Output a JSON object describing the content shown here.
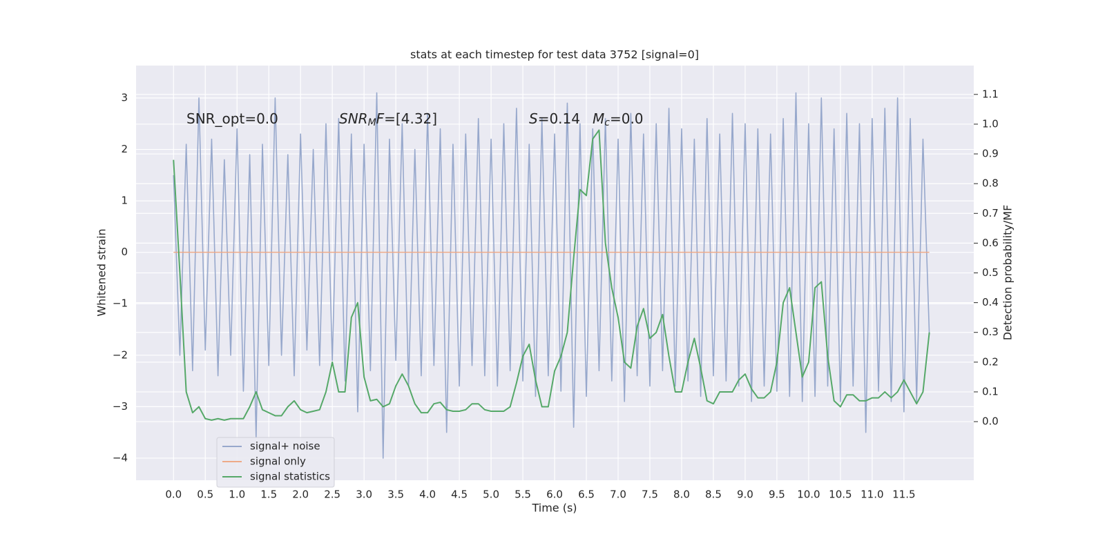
{
  "chart_data": {
    "type": "line",
    "title": "stats at each timestep for test data 3752 [signal=0]",
    "xlabel": "Time (s)",
    "ylabel": "Whitened strain",
    "y2label": "Detection probability/MF",
    "grid": true,
    "legend": "lower left",
    "xlim": [
      -0.59,
      12.6
    ],
    "ylim": [
      -4.43,
      3.63
    ],
    "y2lim": [
      -0.197,
      1.197
    ],
    "xticks": [
      {
        "value": 0,
        "label": "0.0"
      },
      0.5,
      {
        "value": 1,
        "label": "1.0"
      },
      1.5,
      {
        "value": 2,
        "label": "2.0"
      },
      2.5,
      {
        "value": 3,
        "label": "3.0"
      },
      3.5,
      {
        "value": 4,
        "label": "4.0"
      },
      4.5,
      {
        "value": 5,
        "label": "5.0"
      },
      5.5,
      {
        "value": 6,
        "label": "6.0"
      },
      6.5,
      {
        "value": 7,
        "label": "7.0"
      },
      7.5,
      {
        "value": 8,
        "label": "8.0"
      },
      8.5,
      {
        "value": 9,
        "label": "9.0"
      },
      9.5,
      {
        "value": 10,
        "label": "10.0"
      },
      10.5,
      {
        "value": 11,
        "label": "11.0"
      },
      11.5
    ],
    "yticks": [
      {
        "value": -4,
        "label": "−4"
      },
      {
        "value": -3,
        "label": "−3"
      },
      {
        "value": -2,
        "label": "−2"
      },
      {
        "value": -1,
        "label": "−1"
      },
      0,
      1,
      2,
      3
    ],
    "y2ticks": [
      {
        "value": 0,
        "label": "0.0"
      },
      0.1,
      0.2,
      0.3,
      0.4,
      0.5,
      0.6,
      0.7,
      0.8,
      0.9,
      {
        "value": 1,
        "label": "1.0"
      },
      1.1
    ],
    "annotations": [
      [
        {
          "text": "SNR_opt=0.0"
        }
      ],
      [
        {
          "text": "SNR",
          "italic": true
        },
        {
          "text": "M",
          "italic": true,
          "sub": true
        },
        {
          "text": "F",
          "italic": true
        },
        {
          "text": "=[4.32]"
        }
      ],
      [
        {
          "text": "S",
          "italic": true
        },
        {
          "text": "=0.14"
        }
      ],
      [
        {
          "text": "M",
          "italic": true
        },
        {
          "text": "c",
          "italic": true,
          "sub": true
        },
        {
          "text": "=0.0"
        }
      ]
    ],
    "x": [
      0.0,
      0.1,
      0.2,
      0.3,
      0.4,
      0.5,
      0.6,
      0.7,
      0.8,
      0.9,
      1.0,
      1.1,
      1.2,
      1.3,
      1.4,
      1.5,
      1.6,
      1.7,
      1.8,
      1.9,
      2.0,
      2.1,
      2.2,
      2.3,
      2.4,
      2.5,
      2.6,
      2.7,
      2.8,
      2.9,
      3.0,
      3.1,
      3.2,
      3.3,
      3.4,
      3.5,
      3.6,
      3.7,
      3.8,
      3.9,
      4.0,
      4.1,
      4.2,
      4.3,
      4.4,
      4.5,
      4.6,
      4.7,
      4.8,
      4.9,
      5.0,
      5.1,
      5.2,
      5.3,
      5.4,
      5.5,
      5.6,
      5.7,
      5.8,
      5.9,
      6.0,
      6.1,
      6.2,
      6.3,
      6.4,
      6.5,
      6.6,
      6.7,
      6.8,
      6.9,
      7.0,
      7.1,
      7.2,
      7.3,
      7.4,
      7.5,
      7.6,
      7.7,
      7.8,
      7.9,
      8.0,
      8.1,
      8.2,
      8.3,
      8.4,
      8.5,
      8.6,
      8.7,
      8.8,
      8.9,
      9.0,
      9.1,
      9.2,
      9.3,
      9.4,
      9.5,
      9.6,
      9.7,
      9.8,
      9.9,
      10.0,
      10.1,
      10.2,
      10.3,
      10.4,
      10.5,
      10.6,
      10.7,
      10.8,
      10.9,
      11.0,
      11.1,
      11.2,
      11.3,
      11.4,
      11.5,
      11.6,
      11.7,
      11.8,
      11.9
    ],
    "series": [
      {
        "name": "signal+ noise",
        "color": "#97a8cc",
        "values": [
          1.5,
          -2.0,
          2.1,
          -2.3,
          3.0,
          -1.9,
          2.2,
          -2.4,
          1.8,
          -2.0,
          2.4,
          -2.7,
          1.9,
          -3.6,
          2.1,
          -2.2,
          3.0,
          -2.0,
          1.9,
          -2.4,
          2.3,
          -1.9,
          2.0,
          -2.2,
          2.5,
          -2.1,
          2.6,
          -2.5,
          2.3,
          -3.1,
          2.1,
          -2.3,
          3.1,
          -4.0,
          2.2,
          -2.1,
          2.5,
          -2.6,
          2.0,
          -2.4,
          2.7,
          -2.2,
          2.4,
          -3.5,
          2.1,
          -2.6,
          2.3,
          -2.2,
          2.6,
          -2.4,
          2.2,
          -2.6,
          2.5,
          -2.3,
          2.8,
          -2.5,
          2.1,
          -2.8,
          2.6,
          -2.4,
          2.3,
          -2.7,
          2.9,
          -3.4,
          2.5,
          -2.8,
          2.4,
          -2.3,
          2.6,
          -2.5,
          2.2,
          -2.9,
          2.7,
          -2.4,
          2.3,
          -2.6,
          2.5,
          -2.3,
          2.8,
          -2.6,
          2.4,
          -2.5,
          2.2,
          -2.8,
          2.6,
          -2.4,
          2.3,
          -2.5,
          2.7,
          -2.6,
          2.5,
          -2.9,
          2.4,
          -2.6,
          2.3,
          -2.7,
          2.6,
          -2.8,
          3.1,
          -2.9,
          2.5,
          -2.8,
          3.0,
          -2.6,
          2.4,
          -2.9,
          2.7,
          -2.6,
          2.5,
          -3.5,
          2.6,
          -2.7,
          2.8,
          -2.9,
          3.0,
          -3.1,
          2.6,
          -2.9,
          2.2,
          -1.6
        ]
      },
      {
        "name": "signal only",
        "color": "#eeaa88",
        "values": [
          0,
          0,
          0,
          0,
          0,
          0,
          0,
          0,
          0,
          0,
          0,
          0,
          0,
          0,
          0,
          0,
          0,
          0,
          0,
          0,
          0,
          0,
          0,
          0,
          0,
          0,
          0,
          0,
          0,
          0,
          0,
          0,
          0,
          0,
          0,
          0,
          0,
          0,
          0,
          0,
          0,
          0,
          0,
          0,
          0,
          0,
          0,
          0,
          0,
          0,
          0,
          0,
          0,
          0,
          0,
          0,
          0,
          0,
          0,
          0,
          0,
          0,
          0,
          0,
          0,
          0,
          0,
          0,
          0,
          0,
          0,
          0,
          0,
          0,
          0,
          0,
          0,
          0,
          0,
          0,
          0,
          0,
          0,
          0,
          0,
          0,
          0,
          0,
          0,
          0,
          0,
          0,
          0,
          0,
          0,
          0,
          0,
          0,
          0,
          0,
          0,
          0,
          0,
          0,
          0,
          0,
          0,
          0,
          0,
          0,
          0,
          0,
          0,
          0,
          0,
          0,
          0,
          0,
          0,
          0
        ]
      },
      {
        "name": "signal statistics",
        "color": "#55a868",
        "axis": "y2",
        "values": [
          0.88,
          0.5,
          0.1,
          0.03,
          0.05,
          0.01,
          0.005,
          0.01,
          0.005,
          0.01,
          0.01,
          0.01,
          0.05,
          0.1,
          0.04,
          0.03,
          0.02,
          0.02,
          0.05,
          0.07,
          0.04,
          0.03,
          0.035,
          0.04,
          0.1,
          0.2,
          0.1,
          0.1,
          0.35,
          0.4,
          0.15,
          0.07,
          0.075,
          0.05,
          0.06,
          0.12,
          0.16,
          0.12,
          0.06,
          0.03,
          0.03,
          0.06,
          0.065,
          0.04,
          0.035,
          0.035,
          0.04,
          0.06,
          0.06,
          0.04,
          0.035,
          0.035,
          0.035,
          0.05,
          0.13,
          0.22,
          0.26,
          0.14,
          0.05,
          0.05,
          0.17,
          0.22,
          0.3,
          0.55,
          0.78,
          0.76,
          0.95,
          0.98,
          0.6,
          0.45,
          0.35,
          0.2,
          0.18,
          0.32,
          0.38,
          0.28,
          0.3,
          0.36,
          0.22,
          0.1,
          0.1,
          0.2,
          0.28,
          0.18,
          0.07,
          0.06,
          0.1,
          0.1,
          0.1,
          0.14,
          0.16,
          0.11,
          0.08,
          0.08,
          0.1,
          0.2,
          0.4,
          0.45,
          0.3,
          0.15,
          0.2,
          0.45,
          0.47,
          0.22,
          0.07,
          0.05,
          0.09,
          0.09,
          0.07,
          0.07,
          0.08,
          0.08,
          0.1,
          0.08,
          0.1,
          0.14,
          0.1,
          0.06,
          0.1,
          0.3
        ]
      }
    ]
  }
}
